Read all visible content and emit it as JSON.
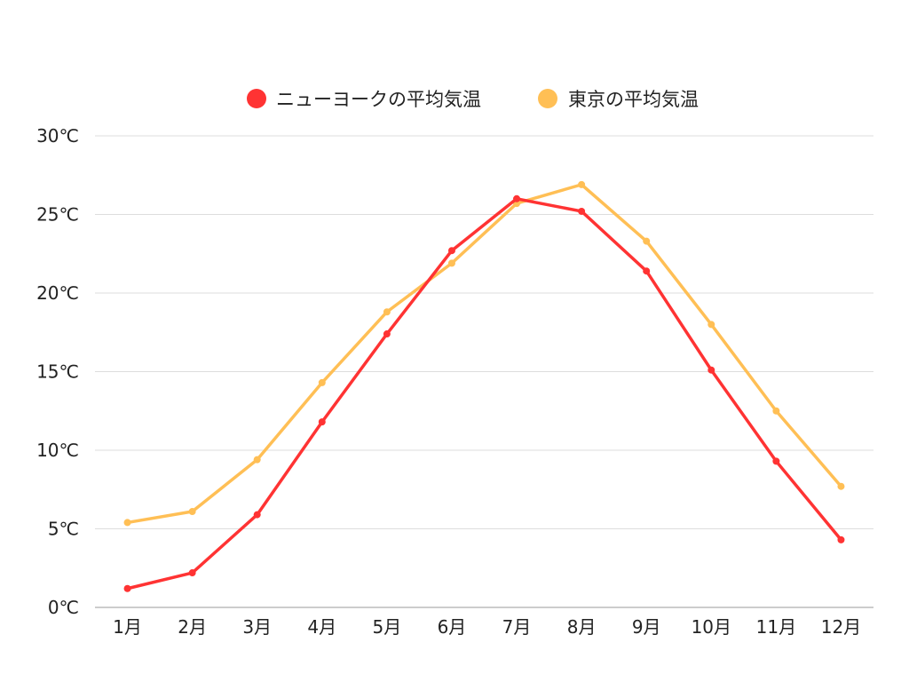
{
  "chart_data": {
    "type": "line",
    "categories": [
      "1月",
      "2月",
      "3月",
      "4月",
      "5月",
      "6月",
      "7月",
      "8月",
      "9月",
      "10月",
      "11月",
      "12月"
    ],
    "series": [
      {
        "name": "ニューヨークの平均気温",
        "color": "#ff3333",
        "values": [
          1.2,
          2.2,
          5.9,
          11.8,
          17.4,
          22.7,
          26.0,
          25.2,
          21.4,
          15.1,
          9.3,
          4.3
        ]
      },
      {
        "name": "東京の平均気温",
        "color": "#ffbf55",
        "values": [
          5.4,
          6.1,
          9.4,
          14.3,
          18.8,
          21.9,
          25.7,
          26.9,
          23.3,
          18.0,
          12.5,
          7.7
        ]
      }
    ],
    "yticks": [
      "0℃",
      "5℃",
      "10℃",
      "15℃",
      "20℃",
      "25℃",
      "30℃"
    ],
    "ylim": [
      0,
      30
    ],
    "ystep": 5,
    "grid": true,
    "legend_position": "top-center"
  }
}
